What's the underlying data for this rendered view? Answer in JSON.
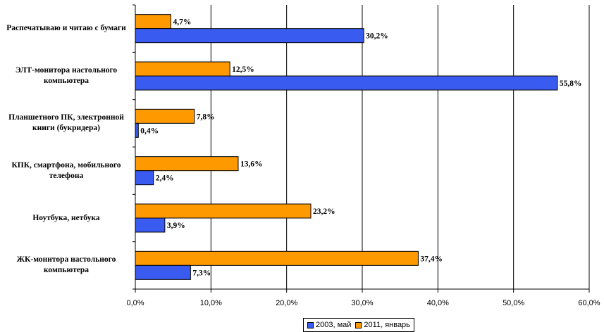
{
  "chart_data": {
    "type": "bar",
    "orientation": "horizontal",
    "categories": [
      "Распечатываю и читаю с бумаги",
      "ЭЛТ-монитора настольного компьютера",
      "Планшетного ПК, электронной книги (букридера)",
      "КПК, смартфона, мобильного телефона",
      "Ноутбука, нетбука",
      "ЖК-монитора настольного компьютера"
    ],
    "series": [
      {
        "name": "2003, май",
        "color": "#3A5BF0",
        "values": [
          30.2,
          55.8,
          0.4,
          2.4,
          3.9,
          7.3
        ],
        "labels": [
          "30,2%",
          "55,8%",
          "0,4%",
          "2,4%",
          "3,9%",
          "7,3%"
        ]
      },
      {
        "name": "2011, январь",
        "color": "#FF9900",
        "values": [
          4.7,
          12.5,
          7.8,
          13.6,
          23.2,
          37.4
        ],
        "labels": [
          "4,7%",
          "12,5%",
          "7,8%",
          "13,6%",
          "23,2%",
          "37,4%"
        ]
      }
    ],
    "xlim": [
      0,
      60
    ],
    "xticks": [
      0,
      10,
      20,
      30,
      40,
      50,
      60
    ],
    "xtick_labels": [
      "0,0%",
      "10,0%",
      "20,0%",
      "30,0%",
      "40,0%",
      "50,0%",
      "60,0%"
    ],
    "grid": true,
    "legend_position": "bottom"
  }
}
